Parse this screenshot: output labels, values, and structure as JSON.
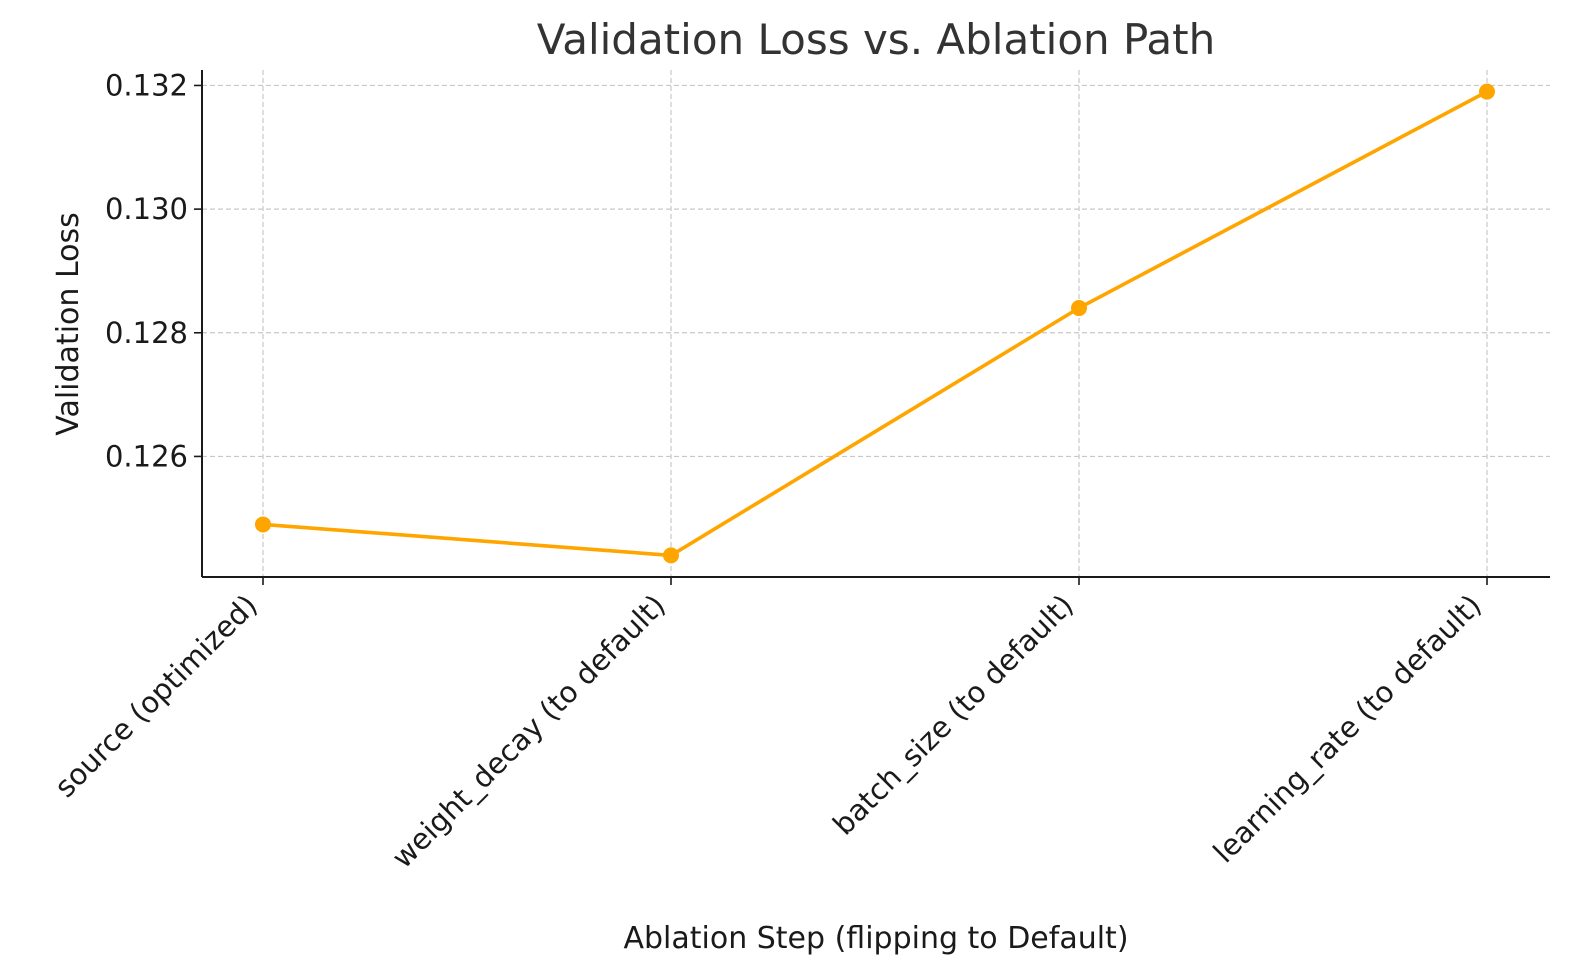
{
  "chart_data": {
    "type": "line",
    "title": "Validation Loss vs. Ablation Path",
    "xlabel": "Ablation Step (flipping to Default)",
    "ylabel": "Validation Loss",
    "categories": [
      "source (optimized)",
      "weight_decay (to default)",
      "batch_size (to default)",
      "learning_rate (to default)"
    ],
    "series": [
      {
        "values": [
          0.1249,
          0.1244,
          0.1284,
          0.1319
        ],
        "color": "#FFA500",
        "marker": "circle"
      }
    ],
    "yticks": [
      0.126,
      0.128,
      0.13,
      0.132
    ],
    "ytick_labels": [
      "0.126",
      "0.128",
      "0.130",
      "0.132"
    ],
    "ylim": [
      0.12405,
      0.13225
    ],
    "grid": true,
    "legend": "none"
  }
}
